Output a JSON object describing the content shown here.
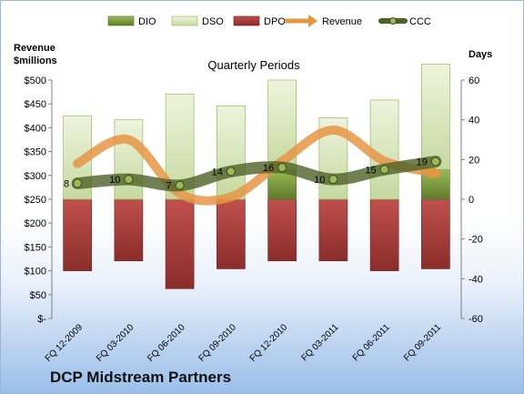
{
  "chart_data": {
    "type": "bar",
    "title": "Quarterly Periods",
    "company": "DCP Midstream Partners",
    "y_left_label_line1": "Revenue",
    "y_left_label_line2": "$millions",
    "y_right_label": "Days",
    "y_left_ticks": [
      "$-",
      "$50",
      "$100",
      "$150",
      "$200",
      "$250",
      "$300",
      "$350",
      "$400",
      "$450",
      "$500"
    ],
    "y_right_ticks": [
      "-60",
      "-40",
      "-20",
      "0",
      "20",
      "40",
      "60"
    ],
    "ylim_left": [
      0,
      500
    ],
    "ylim_right": [
      -60,
      60
    ],
    "categories": [
      "FQ 12-2009",
      "FQ 03-2010",
      "FQ 06-2010",
      "FQ 09-2010",
      "FQ 12-2010",
      "FQ 03-2011",
      "FQ 06-2011",
      "FQ 09-2011"
    ],
    "series": [
      {
        "name": "DIO",
        "axis": "days",
        "values": [
          0,
          0,
          0,
          0,
          15,
          0,
          0,
          15
        ],
        "color": "#77933c"
      },
      {
        "name": "DSO",
        "axis": "days",
        "values": [
          42,
          40,
          53,
          47,
          45,
          41,
          50,
          53
        ],
        "color": "#d7e4bd"
      },
      {
        "name": "DPO",
        "axis": "days",
        "values": [
          -36,
          -31,
          -45,
          -35,
          -31,
          -31,
          -36,
          -35
        ],
        "color": "#953735"
      },
      {
        "name": "Revenue",
        "axis": "revenue",
        "values": [
          325,
          375,
          262,
          255,
          330,
          395,
          330,
          305
        ],
        "color": "#e69545"
      },
      {
        "name": "CCC",
        "axis": "days",
        "values": [
          8,
          10,
          7,
          14,
          16,
          10,
          15,
          19
        ],
        "labels": [
          "8",
          "10",
          "7",
          "14",
          "16",
          "10",
          "15",
          "19"
        ],
        "color": "#4f6228"
      }
    ],
    "legend": "top",
    "grid": false
  }
}
